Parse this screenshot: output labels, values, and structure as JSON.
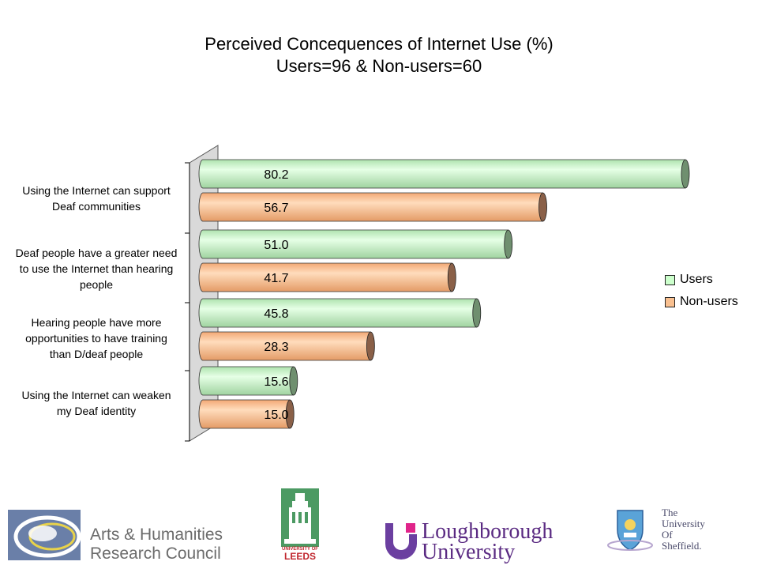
{
  "chart_data": {
    "type": "bar",
    "orientation": "horizontal",
    "title": "Perceived Concequences of Internet Use (%)",
    "subtitle": "Users=96 & Non-users=60",
    "categories": [
      [
        "Using the Internet can support",
        "Deaf communities"
      ],
      [
        "Deaf people have a greater need",
        "to use the Internet than hearing",
        "people"
      ],
      [
        "Hearing people have more",
        "opportunities to have training",
        "than D/deaf people"
      ],
      [
        "Using the Internet can weaken",
        "my Deaf identity"
      ]
    ],
    "series": [
      {
        "name": "Users",
        "values": [
          80.2,
          51.0,
          45.8,
          15.6
        ],
        "labels": [
          "80.2",
          "51.0",
          "45.8",
          "15.6"
        ],
        "color": "#ccffcc",
        "cap_color": "#6f8f6f"
      },
      {
        "name": "Non-users",
        "values": [
          56.7,
          41.7,
          28.3,
          15.0
        ],
        "labels": [
          "56.7",
          "41.7",
          "28.3",
          "15.0"
        ],
        "color": "#f9c090",
        "cap_color": "#8a6048"
      }
    ],
    "xlim": [
      0,
      80.2
    ],
    "legend_position": "right",
    "grid": false
  },
  "logos": {
    "ahrc": {
      "line1": "Arts & Humanities",
      "line2": "Research Council"
    },
    "leeds": {
      "line1": "UNIVERSITY OF",
      "line2": "LEEDS"
    },
    "loughborough": {
      "line1": "Loughborough",
      "line2": "University"
    },
    "sheffield": {
      "line1": "The",
      "line2": "University",
      "line3": "Of",
      "line4": "Sheffield."
    }
  }
}
